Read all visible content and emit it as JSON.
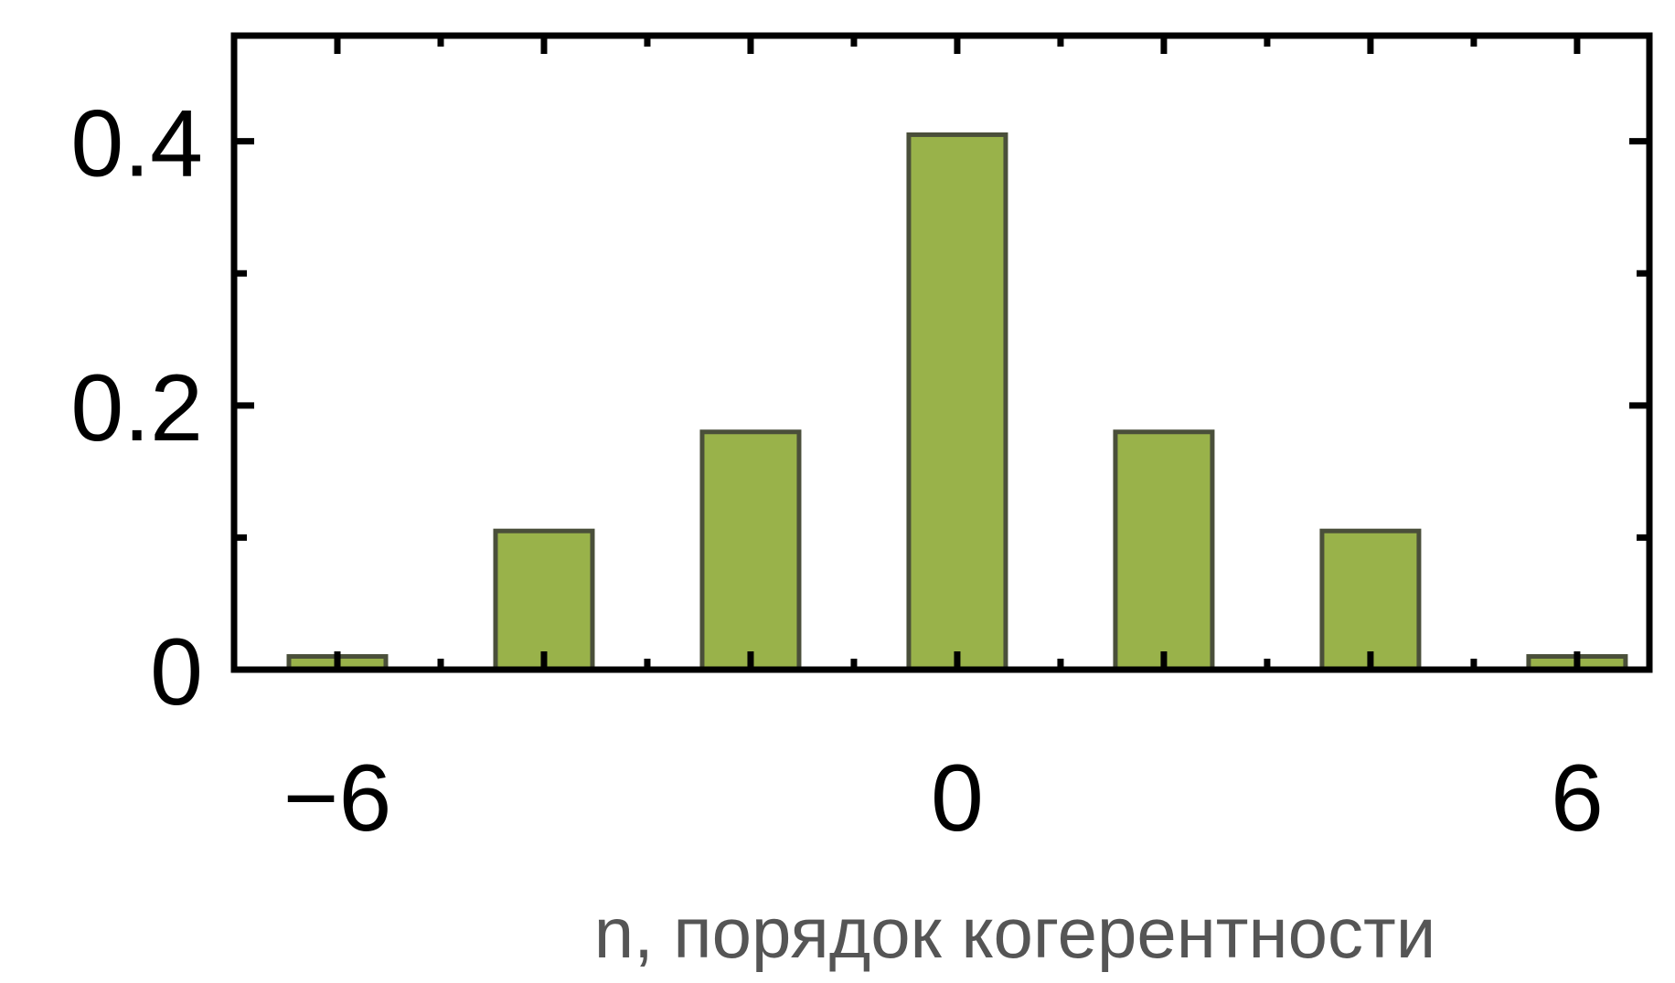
{
  "chart_data": {
    "type": "bar",
    "x": [
      -6,
      -4,
      -2,
      0,
      2,
      4,
      6
    ],
    "values": [
      0.01,
      0.105,
      0.18,
      0.405,
      0.18,
      0.105,
      0.01
    ],
    "xlim": [
      -7,
      6.7
    ],
    "ylim": [
      0,
      0.48
    ],
    "xticks": [
      -6,
      0,
      6
    ],
    "xtick_labels": [
      "−6",
      "0",
      "6"
    ],
    "yticks": [
      0,
      0.2,
      0.4
    ],
    "ytick_labels": [
      "0",
      "0.2",
      "0.4"
    ],
    "xlabel": "n, порядок когерентности",
    "ylabel": "",
    "title": "",
    "grid": false,
    "bar_color": "#99b24a",
    "bar_edge_color": "#4a4f3a"
  }
}
